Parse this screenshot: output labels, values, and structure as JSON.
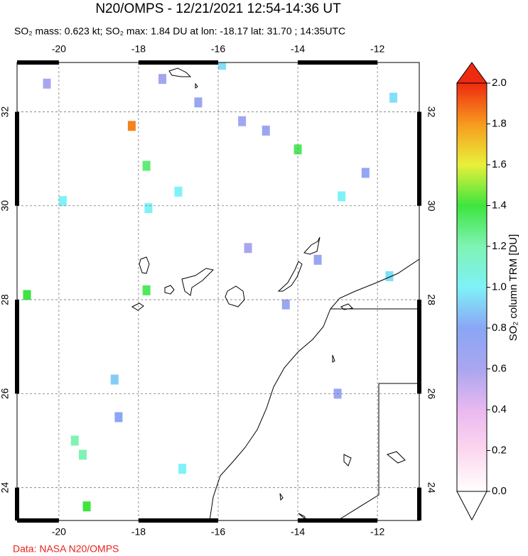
{
  "title": "N20/OMPS - 12/21/2021 12:54-14:36 UT",
  "subtitle": "SO₂ mass: 0.623 kt; SO₂ max: 1.84 DU at lon: -18.17 lat: 31.70 ; 14:35UTC",
  "map": {
    "xlim": [
      -21.05,
      -10.95
    ],
    "ylim": [
      23.3,
      33.05
    ],
    "xticks": [
      -20,
      -18,
      -16,
      -14,
      -12
    ],
    "yticks": [
      24,
      26,
      28,
      30,
      32
    ],
    "grid": true,
    "pixels": {
      "lon": [
        -18.17,
        -14.0,
        -17.8,
        -20.8,
        -19.3,
        -17.8,
        -17.75,
        -15.9,
        -12.9,
        -11.7,
        -11.6,
        -15.25,
        -19.6,
        -14.8,
        -16.5,
        -17.0,
        -18.6,
        -15.4,
        -13.5,
        -12.3,
        -19.9,
        -19.4,
        -16.9,
        -14.3,
        -20.3,
        -18.5,
        -13.0,
        -17.4
      ],
      "lat": [
        31.7,
        31.2,
        28.2,
        28.1,
        23.6,
        30.85,
        29.95,
        33.0,
        30.2,
        28.5,
        32.3,
        29.1,
        25.0,
        31.6,
        32.2,
        30.3,
        26.3,
        31.8,
        28.85,
        30.7,
        30.1,
        24.7,
        24.4,
        27.9,
        32.6,
        25.5,
        26.0,
        32.7
      ],
      "values": [
        1.84,
        1.35,
        1.35,
        1.4,
        1.4,
        1.3,
        1.0,
        0.95,
        1.0,
        0.95,
        0.95,
        0.6,
        1.2,
        0.7,
        0.7,
        1.0,
        0.9,
        0.65,
        0.7,
        0.75,
        1.0,
        1.2,
        1.0,
        0.7,
        0.6,
        0.8,
        0.7,
        0.65
      ]
    }
  },
  "colorbar": {
    "label": "SO₂ column TRM [DU]",
    "lim": [
      0,
      2
    ],
    "ticks": [
      {
        "value": 0,
        "label": "0.0"
      },
      0.2,
      0.4,
      0.6,
      0.8,
      {
        "value": 1,
        "label": "1.0"
      },
      1.2,
      1.4,
      1.6,
      1.8,
      {
        "value": 2,
        "label": "2.0"
      }
    ],
    "colors": [
      "#ffffff",
      "#fcd7ee",
      "#e9b8f0",
      "#a9a6ef",
      "#8aa6f5",
      "#7ef2f7",
      "#7ff3b4",
      "#3ee53e",
      "#e8f03a",
      "#f79a1e",
      "#ee2a10"
    ]
  },
  "credit": "Data: NASA N20/OMPS"
}
